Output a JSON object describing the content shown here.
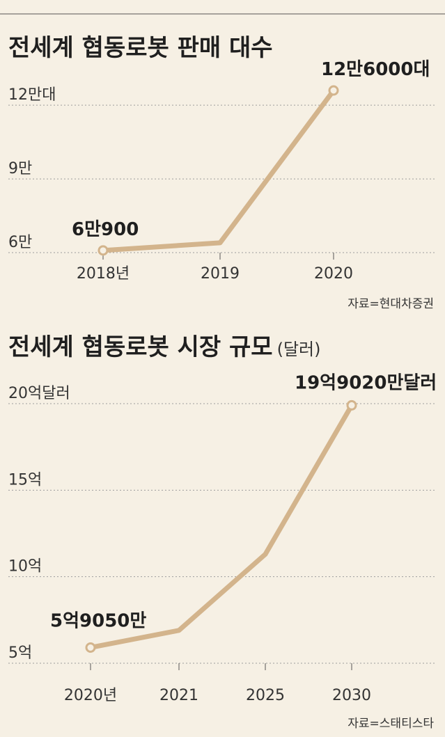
{
  "chart_data": [
    {
      "type": "line",
      "title": "전세계 협동로봇 판매 대수",
      "title_suffix": "",
      "categories": [
        "2018년",
        "2019",
        "2020"
      ],
      "values": [
        60900,
        64000,
        126000
      ],
      "y_ticks": [
        {
          "value": 60000,
          "label": "6만"
        },
        {
          "value": 90000,
          "label": "9만"
        },
        {
          "value": 120000,
          "label": "12만대"
        }
      ],
      "data_labels": [
        {
          "index": 0,
          "text": "6만900"
        },
        {
          "index": 2,
          "text": "12만6000대"
        }
      ],
      "markers": [
        0,
        2
      ],
      "ylim": [
        60000,
        126000
      ],
      "grid": true,
      "source": "자료=현대차증권",
      "series_color": "#d3b48c"
    },
    {
      "type": "line",
      "title": "전세계 협동로봇 시장 규모",
      "title_suffix": "(달러)",
      "categories": [
        "2020년",
        "2021",
        "2025",
        "2030"
      ],
      "values": [
        5.905,
        6.9,
        11.3,
        19.902
      ],
      "y_ticks": [
        {
          "value": 5,
          "label": "5억"
        },
        {
          "value": 10,
          "label": "10억"
        },
        {
          "value": 15,
          "label": "15억"
        },
        {
          "value": 20,
          "label": "20억달러"
        }
      ],
      "data_labels": [
        {
          "index": 0,
          "text": "5억9050만"
        },
        {
          "index": 3,
          "text": "19억9020만달러"
        }
      ],
      "markers": [
        0,
        3
      ],
      "ylim": [
        5,
        20
      ],
      "grid": true,
      "source": "자료=스태티스타",
      "series_color": "#d3b48c"
    }
  ]
}
